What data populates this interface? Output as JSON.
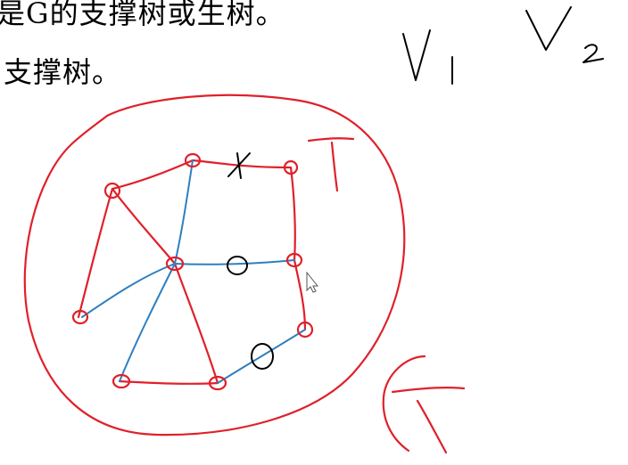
{
  "slide": {
    "line1": "是G的支撑树或生树。",
    "line2": "支撑树。"
  },
  "annotations": {
    "tree_label": "T",
    "graph_label": "G",
    "v1": "V",
    "v1_sub": "1",
    "v2": "V",
    "v2_sub": "2",
    "mark_cross": "x",
    "mark_o1": "o",
    "mark_o2": "o"
  },
  "colors": {
    "graph_edge": "#e0202a",
    "tree_edge": "#2f7fbf",
    "ink": "#000000"
  }
}
